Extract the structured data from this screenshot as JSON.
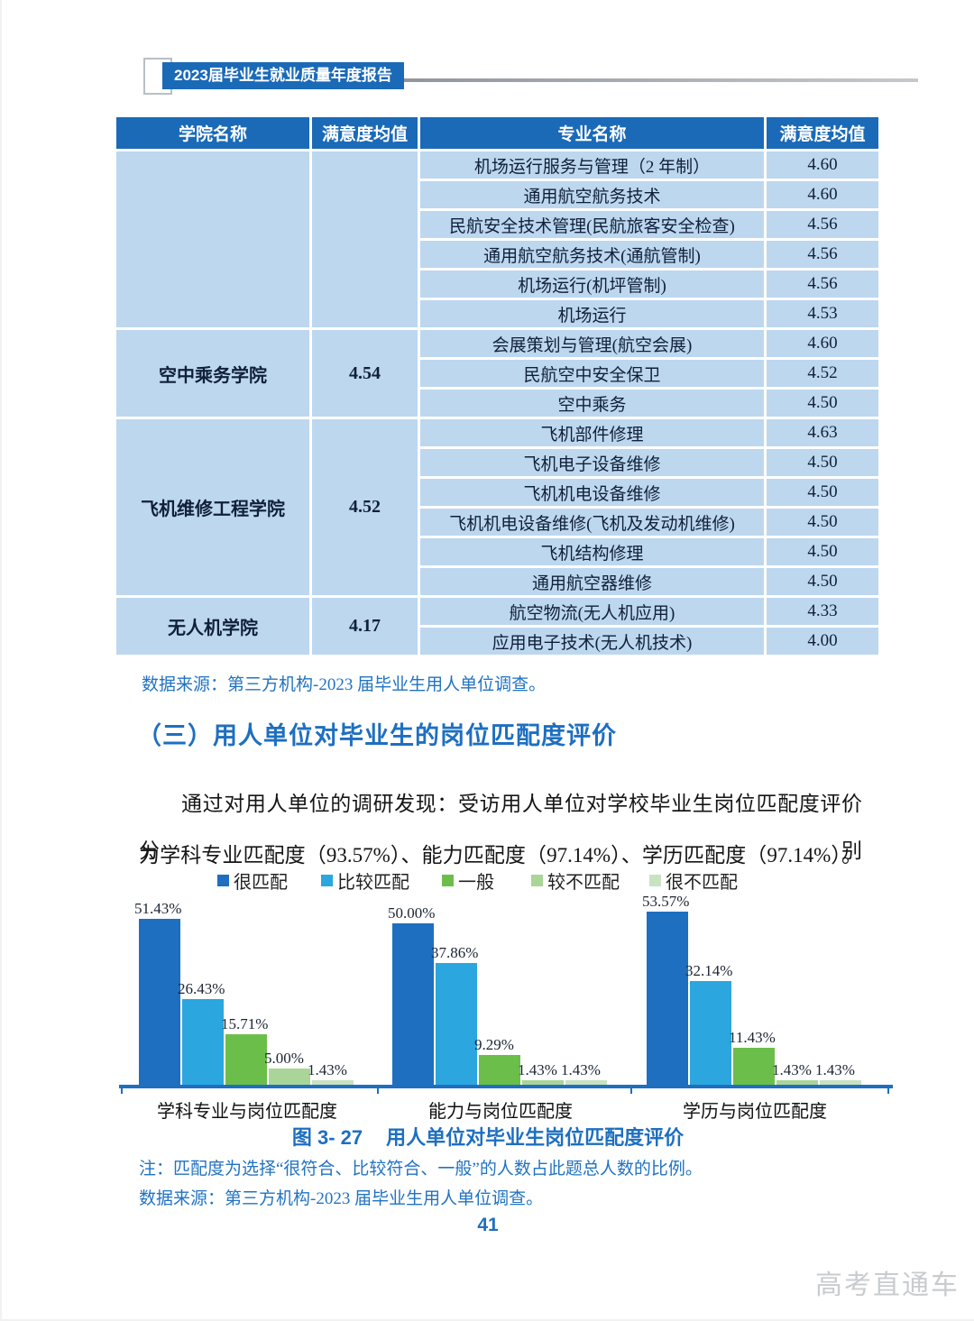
{
  "page": {
    "header_badge": "2023届毕业生就业质量年度报告",
    "page_number": "41",
    "watermark": "高考直通车"
  },
  "table": {
    "headers": [
      "学院名称",
      "满意度均值",
      "专业名称",
      "满意度均值"
    ],
    "groups": [
      {
        "college": "",
        "score": "",
        "majors": [
          {
            "name": "机场运行服务与管理（2 年制）",
            "value": "4.60"
          },
          {
            "name": "通用航空航务技术",
            "value": "4.60"
          },
          {
            "name": "民航安全技术管理(民航旅客安全检查)",
            "value": "4.56"
          },
          {
            "name": "通用航空航务技术(通航管制)",
            "value": "4.56"
          },
          {
            "name": "机场运行(机坪管制)",
            "value": "4.56"
          },
          {
            "name": "机场运行",
            "value": "4.53"
          }
        ]
      },
      {
        "college": "空中乘务学院",
        "score": "4.54",
        "majors": [
          {
            "name": "会展策划与管理(航空会展)",
            "value": "4.60"
          },
          {
            "name": "民航空中安全保卫",
            "value": "4.52"
          },
          {
            "name": "空中乘务",
            "value": "4.50"
          }
        ]
      },
      {
        "college": "飞机维修工程学院",
        "score": "4.52",
        "majors": [
          {
            "name": "飞机部件修理",
            "value": "4.63"
          },
          {
            "name": "飞机电子设备维修",
            "value": "4.50"
          },
          {
            "name": "飞机机电设备维修",
            "value": "4.50"
          },
          {
            "name": "飞机机电设备维修(飞机及发动机维修)",
            "value": "4.50"
          },
          {
            "name": "飞机结构修理",
            "value": "4.50"
          },
          {
            "name": "通用航空器维修",
            "value": "4.50"
          }
        ]
      },
      {
        "college": "无人机学院",
        "score": "4.17",
        "majors": [
          {
            "name": "航空物流(无人机应用)",
            "value": "4.33"
          },
          {
            "name": "应用电子技术(无人机技术)",
            "value": "4.00"
          }
        ]
      }
    ],
    "source": "数据来源：第三方机构-2023 届毕业生用人单位调查。"
  },
  "section": {
    "heading": "（三）用人单位对毕业生的岗位匹配度评价",
    "paragraph_line1": "通过对用人单位的调研发现：受访用人单位对学校毕业生岗位匹配度评价分别",
    "paragraph_line2": "为学科专业匹配度（93.57%）、能力匹配度（97.14%）、学历匹配度（97.14%）。"
  },
  "chart_data": {
    "type": "bar",
    "title": "图 3- 27 用人单位对毕业生岗位匹配度评价",
    "categories": [
      "学科专业与岗位匹配度",
      "能力与岗位匹配度",
      "学历与岗位匹配度"
    ],
    "series": [
      {
        "name": "很匹配",
        "color": "#1e6fc0",
        "values": [
          51.43,
          50.0,
          53.57
        ]
      },
      {
        "name": "比较匹配",
        "color": "#2ba6de",
        "values": [
          26.43,
          37.86,
          32.14
        ]
      },
      {
        "name": "一般",
        "color": "#6cbe4b",
        "values": [
          15.71,
          9.29,
          11.43
        ]
      },
      {
        "name": "较不匹配",
        "color": "#aad598",
        "values": [
          5.0,
          1.43,
          1.43
        ]
      },
      {
        "name": "很不匹配",
        "color": "#c9e2c1",
        "values": [
          1.43,
          1.43,
          1.43
        ]
      }
    ],
    "value_suffix": "%",
    "ylim": [
      0,
      55
    ],
    "grid": false,
    "legend_position": "top",
    "xlabel": "",
    "ylabel": ""
  },
  "figure": {
    "caption_number": "图 3- 27",
    "caption_title": "用人单位对毕业生岗位匹配度评价",
    "note": "注：匹配度为选择“很符合、比较符合、一般”的人数占此题总人数的比例。",
    "source": "数据来源：第三方机构-2023 届毕业生用人单位调查。"
  },
  "colors": {
    "table_header_bg": "#1a6ab8",
    "table_cell_bg": "#bdd7ee",
    "accent_blue": "#1e6fc0",
    "note_blue": "#2173c2",
    "axis_blue": "#1e6fc0"
  }
}
